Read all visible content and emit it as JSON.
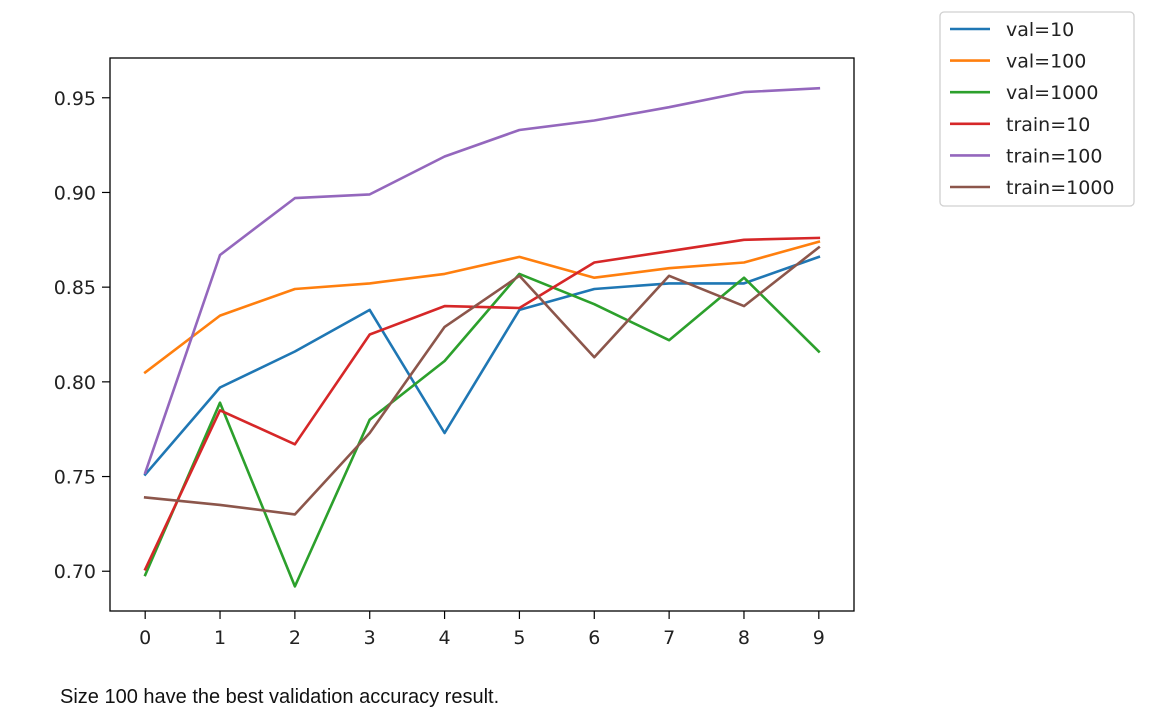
{
  "chart_data": {
    "type": "line",
    "x": [
      0,
      1,
      2,
      3,
      4,
      5,
      6,
      7,
      8,
      9
    ],
    "xlim": [
      -0.47,
      9.47
    ],
    "ylim": [
      0.679,
      0.971
    ],
    "xticks": [
      0,
      1,
      2,
      3,
      4,
      5,
      6,
      7,
      8,
      9
    ],
    "yticks": [
      0.7,
      0.75,
      0.8,
      0.85,
      0.9,
      0.95
    ],
    "ytick_labels": [
      "0.70",
      "0.75",
      "0.80",
      "0.85",
      "0.90",
      "0.95"
    ],
    "title": "",
    "xlabel": "",
    "ylabel": "",
    "grid": false,
    "legend_position": "outside top-right",
    "series": [
      {
        "name": "val=10",
        "color": "#1f77b4",
        "values": [
          0.751,
          0.797,
          0.816,
          0.838,
          0.773,
          0.838,
          0.849,
          0.852,
          0.852,
          0.866
        ]
      },
      {
        "name": "val=100",
        "color": "#ff7f0e",
        "values": [
          0.805,
          0.835,
          0.849,
          0.852,
          0.857,
          0.866,
          0.855,
          0.86,
          0.863,
          0.874
        ]
      },
      {
        "name": "val=1000",
        "color": "#2ca02c",
        "values": [
          0.698,
          0.789,
          0.692,
          0.78,
          0.811,
          0.857,
          0.841,
          0.822,
          0.855,
          0.816
        ]
      },
      {
        "name": "train=10",
        "color": "#d62728",
        "values": [
          0.701,
          0.785,
          0.767,
          0.825,
          0.84,
          0.839,
          0.863,
          0.869,
          0.875,
          0.876
        ]
      },
      {
        "name": "train=100",
        "color": "#9467bd",
        "values": [
          0.752,
          0.867,
          0.897,
          0.899,
          0.919,
          0.933,
          0.938,
          0.945,
          0.953,
          0.955
        ]
      },
      {
        "name": "train=1000",
        "color": "#8c564b",
        "values": [
          0.739,
          0.735,
          0.73,
          0.773,
          0.829,
          0.856,
          0.813,
          0.856,
          0.84,
          0.871
        ]
      }
    ]
  },
  "caption": "Size 100 have the best validation accuracy result."
}
